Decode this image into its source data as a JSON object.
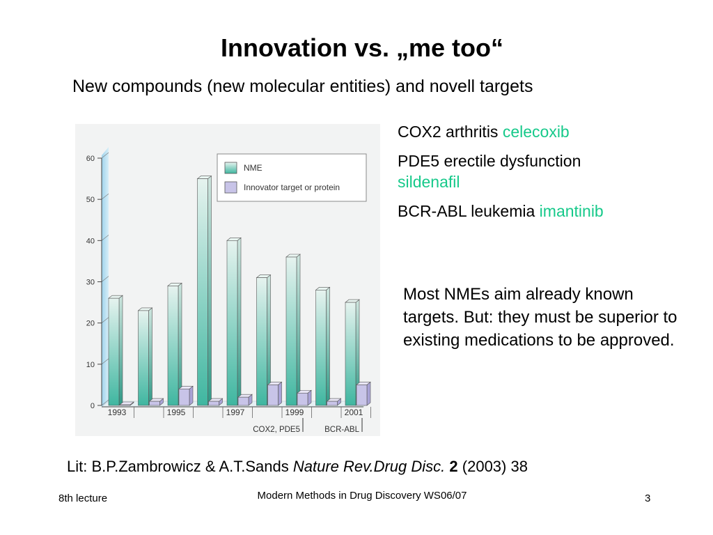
{
  "slide": {
    "title": "Innovation vs. „me too“",
    "subtitle": "New compounds (new molecular entities) and novell targets",
    "notes": [
      {
        "text": "COX2 arthritis ",
        "drug": "celecoxib"
      },
      {
        "text": "PDE5 erectile dysfunction ",
        "drug": "sildenafil"
      },
      {
        "text": "BCR-ABL leukemia ",
        "drug": "imantinib"
      }
    ],
    "paragraph": "Most NMEs aim already known targets. But: they must be superior to existing medications to be approved.",
    "lit": {
      "prefix": "Lit: B.P.Zambrowicz & A.T.Sands ",
      "journal": "Nature Rev.Drug Disc.",
      "volume": "2",
      "suffix": " (2003) 38"
    },
    "footer": {
      "left": "8th lecture",
      "center": "Modern Methods in Drug Discovery WS06/07",
      "right": "3"
    }
  },
  "chart_data": {
    "type": "bar",
    "years": [
      1993,
      1994,
      1995,
      1996,
      1997,
      1998,
      1999,
      2000,
      2001
    ],
    "x_tick_labels": [
      "1993",
      "1995",
      "1997",
      "1999",
      "2001"
    ],
    "series": [
      {
        "name": "NME",
        "values": [
          26,
          23,
          29,
          55,
          40,
          31,
          36,
          28,
          25
        ],
        "color": "#3fb6a0"
      },
      {
        "name": "Innovator target or protein",
        "values": [
          0,
          1,
          4,
          1,
          2,
          5,
          3,
          1,
          5
        ],
        "color": "#c8c4e8"
      }
    ],
    "ylim": [
      0,
      60
    ],
    "y_ticks": [
      0,
      10,
      20,
      30,
      40,
      50,
      60
    ],
    "legend_position": "top-right",
    "annotations": [
      {
        "label": "COX2, PDE5",
        "year": 1999
      },
      {
        "label": "BCR-ABL",
        "year": 2001
      }
    ]
  }
}
